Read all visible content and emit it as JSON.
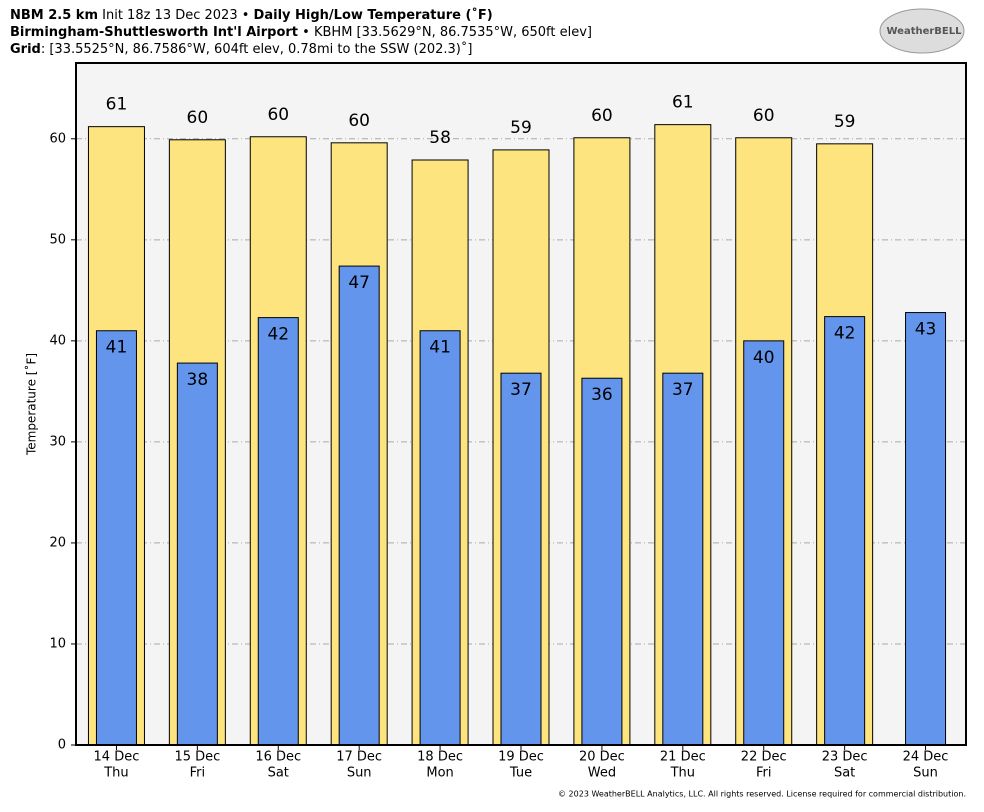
{
  "chart_data": {
    "type": "bar",
    "title": [
      "NBM 2.5 km",
      "Init 18z 13 Dec 2023 •",
      "Daily High/Low Temperature (˚F)"
    ],
    "subtitle": [
      "Birmingham-Shuttlesworth Int'l Airport",
      "• KBHM [33.5629°N, 86.7535°W, 650ft elev]"
    ],
    "grid_info": [
      "Grid",
      ": [33.5525°N, 86.7586°W, 604ft elev, 0.78mi to the SSW (202.3)˚]"
    ],
    "logo": "WeatherBELL",
    "footer": "© 2023 WeatherBELL Analytics, LLC. All rights reserved. License required for commercial distribution.",
    "ylabel": "Temperature [˚F]",
    "categories": [
      [
        "14 Dec",
        "Thu"
      ],
      [
        "15 Dec",
        "Fri"
      ],
      [
        "16 Dec",
        "Sat"
      ],
      [
        "17 Dec",
        "Sun"
      ],
      [
        "18 Dec",
        "Mon"
      ],
      [
        "19 Dec",
        "Tue"
      ],
      [
        "20 Dec",
        "Wed"
      ],
      [
        "21 Dec",
        "Thu"
      ],
      [
        "22 Dec",
        "Fri"
      ],
      [
        "23 Dec",
        "Sat"
      ],
      [
        "24 Dec",
        "Sun"
      ]
    ],
    "series": [
      {
        "color": "#fde47f",
        "values": [
          61.2,
          59.9,
          60.2,
          59.6,
          57.9,
          58.9,
          60.1,
          61.4,
          60.1,
          59.5,
          null
        ],
        "value_labels": [
          "61",
          "60",
          "60",
          "60",
          "58",
          "59",
          "60",
          "61",
          "60",
          "59",
          null
        ]
      },
      {
        "color": "#6495ed",
        "values": [
          41.0,
          37.8,
          42.3,
          47.4,
          41.0,
          36.8,
          36.3,
          36.8,
          40.0,
          42.4,
          42.8
        ],
        "value_labels": [
          "41",
          "38",
          "42",
          "47",
          "41",
          "37",
          "36",
          "37",
          "40",
          "42",
          "43"
        ]
      }
    ],
    "ylim": [
      0,
      67.5
    ],
    "yticks": [
      0,
      10,
      20,
      30,
      40,
      50,
      60
    ],
    "grid": true
  }
}
